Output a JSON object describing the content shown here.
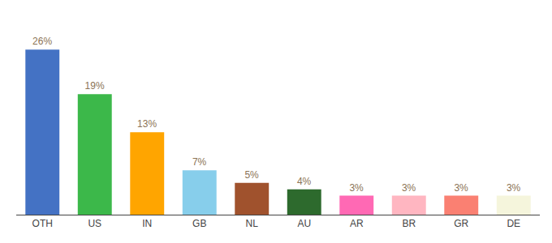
{
  "chart_data": {
    "type": "bar",
    "categories": [
      "OTH",
      "US",
      "IN",
      "GB",
      "NL",
      "AU",
      "AR",
      "BR",
      "GR",
      "DE"
    ],
    "values": [
      26,
      19,
      13,
      7,
      5,
      4,
      3,
      3,
      3,
      3
    ],
    "value_labels": [
      "26%",
      "19%",
      "13%",
      "7%",
      "5%",
      "4%",
      "3%",
      "3%",
      "3%",
      "3%"
    ],
    "colors": [
      "#4472C4",
      "#3CB84A",
      "#FFA500",
      "#87CEEB",
      "#A0522D",
      "#2D6A2D",
      "#FF69B4",
      "#FFB6C1",
      "#FA8072",
      "#F5F5DC"
    ],
    "ylim": [
      0,
      30
    ],
    "grid": false,
    "tick_labels": "x"
  }
}
